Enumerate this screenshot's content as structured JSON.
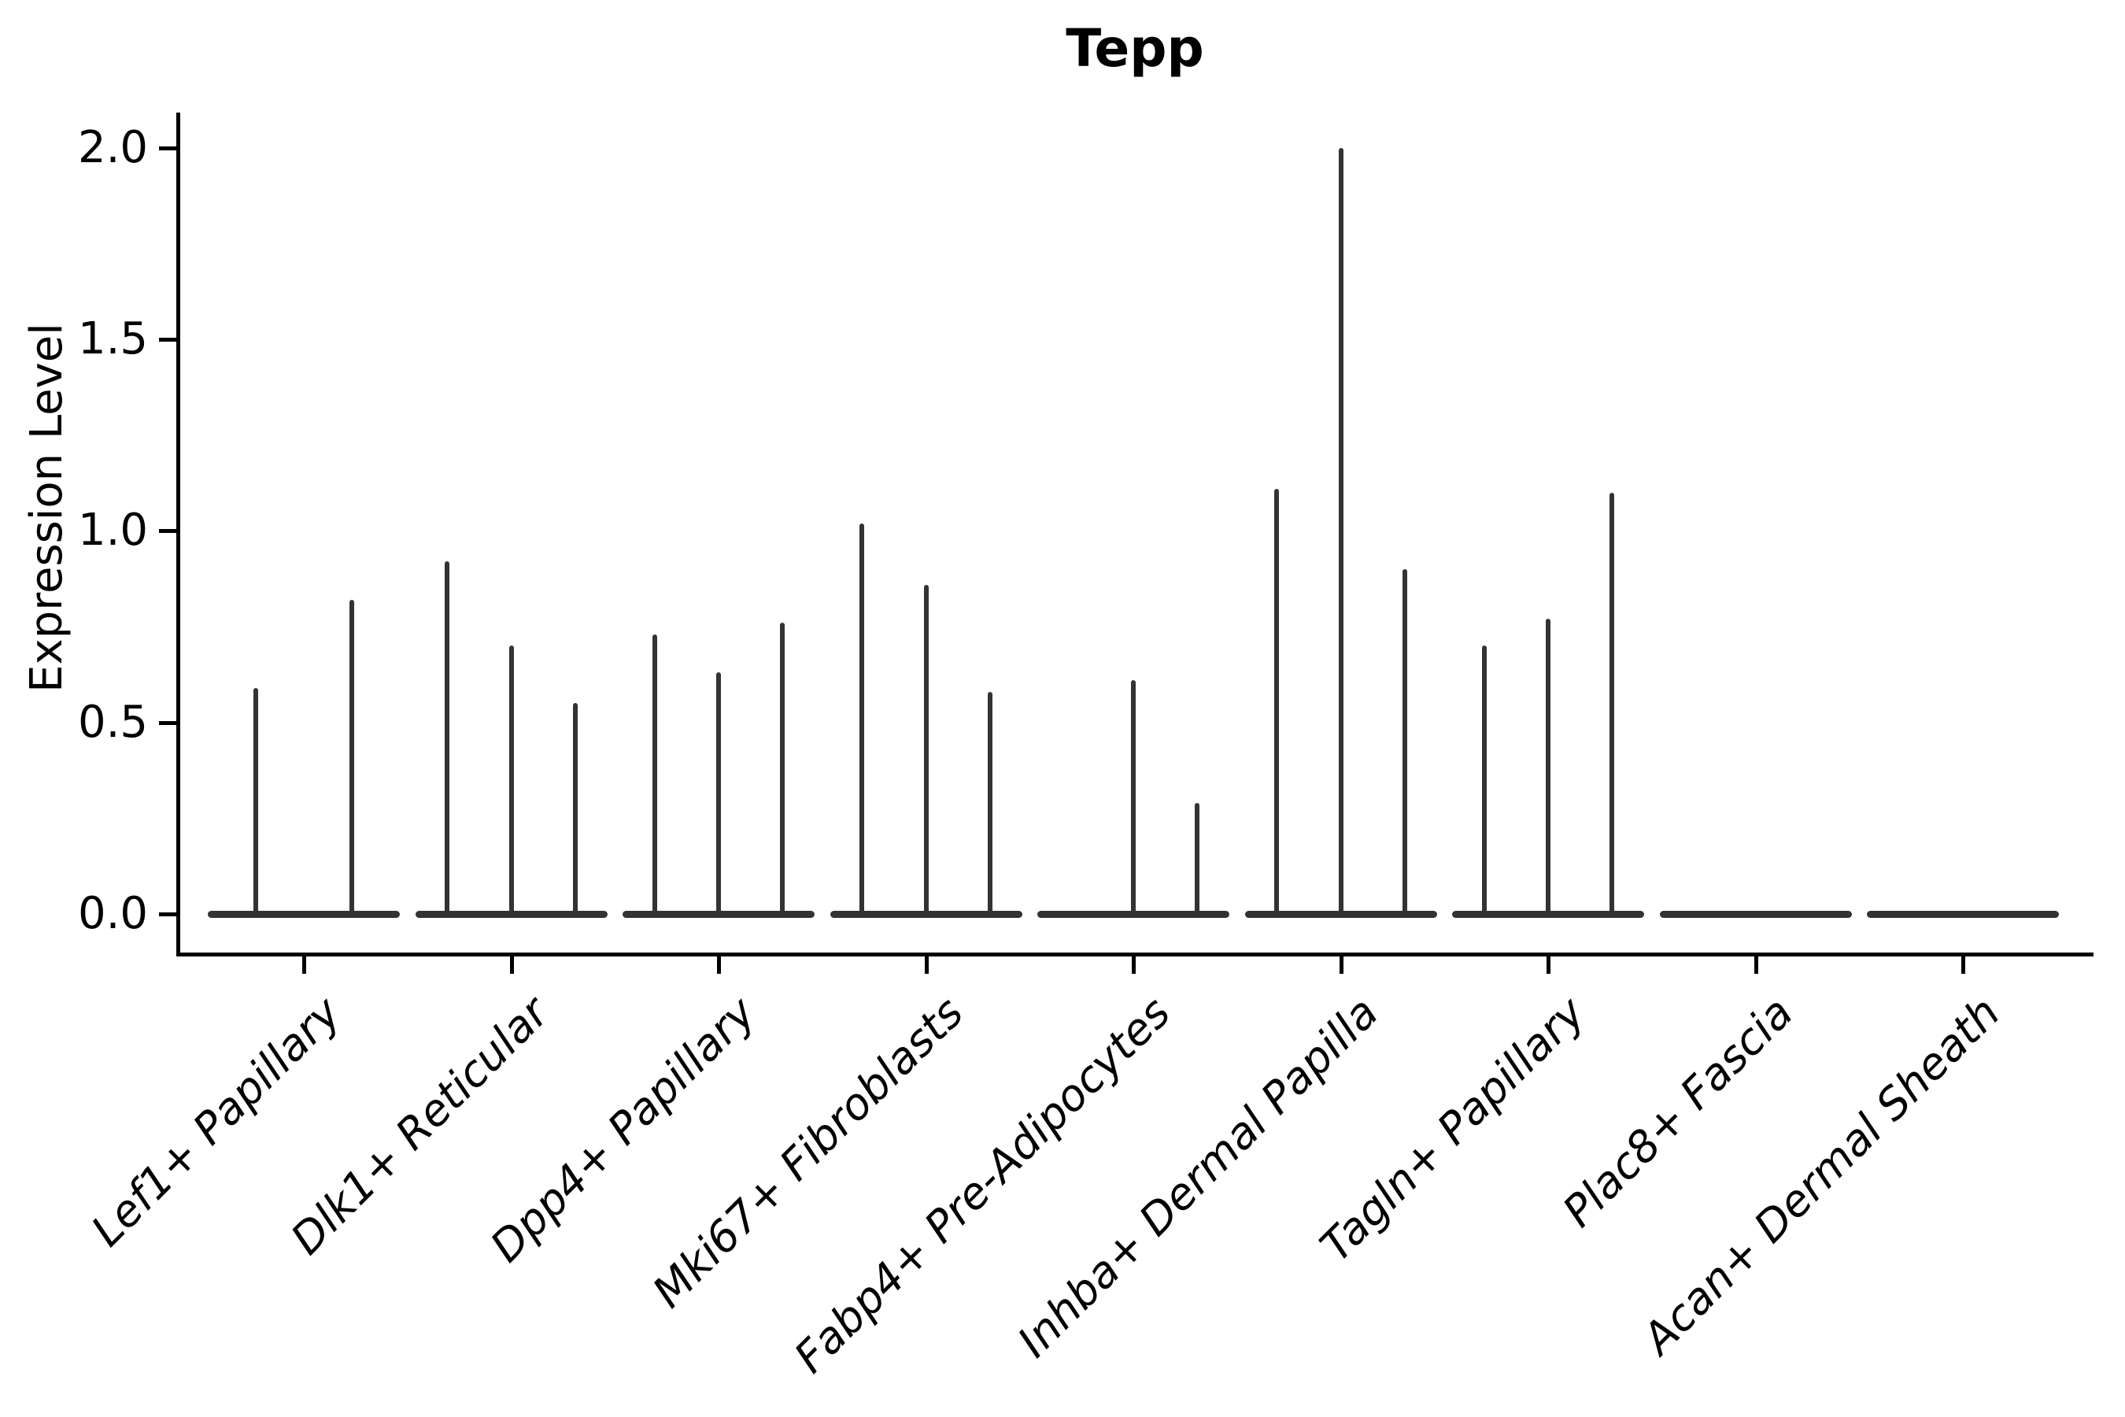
{
  "page": {
    "background": "#ffffff"
  },
  "chart_data": {
    "type": "violin",
    "title": "Tepp",
    "xlabel": "",
    "ylabel": "Expression Level",
    "ylim": [
      -0.12,
      2.09
    ],
    "yticks": [
      0.0,
      0.5,
      1.0,
      1.5,
      2.0
    ],
    "ytick_labels": [
      "0.0",
      "0.5",
      "1.0",
      "1.5",
      "2.0"
    ],
    "grid": false,
    "legend_position": "none",
    "categories": [
      "Lef1+ Papillary",
      "Dlk1+ Reticular",
      "Dpp4+ Papillary",
      "Mki67+ Fibroblasts",
      "Fabp4+ Pre-Adipocytes",
      "Inhba+ Dermal Papilla",
      "Tagln+ Papillary",
      "Plac8+ Fascia",
      "Acan+ Dermal Sheath"
    ],
    "groups": [
      {
        "category": "Lef1+ Papillary",
        "violin_peaks": [
          0.59,
          0.82
        ]
      },
      {
        "category": "Dlk1+ Reticular",
        "violin_peaks": [
          0.92,
          0.7,
          0.55
        ]
      },
      {
        "category": "Dpp4+ Papillary",
        "violin_peaks": [
          0.73,
          0.63,
          0.76
        ]
      },
      {
        "category": "Mki67+ Fibroblasts",
        "violin_peaks": [
          1.02,
          0.86,
          0.58
        ]
      },
      {
        "category": "Fabp4+ Pre-Adipocytes",
        "violin_peaks": [
          0,
          0.61,
          0.29
        ]
      },
      {
        "category": "Inhba+ Dermal Papilla",
        "violin_peaks": [
          1.11,
          2.0,
          0.9
        ]
      },
      {
        "category": "Tagln+ Papillary",
        "violin_peaks": [
          0.7,
          0.77,
          1.1
        ]
      },
      {
        "category": "Plac8+ Fascia",
        "violin_peaks": [
          0,
          0,
          0
        ]
      },
      {
        "category": "Acan+ Dermal Sheath",
        "violin_peaks": [
          0,
          0,
          0
        ]
      }
    ],
    "colors": {
      "violin": "#333333",
      "axis": "#000000",
      "text": "#000000"
    },
    "x_label_rotation_deg": 45,
    "x_label_italic": true
  }
}
